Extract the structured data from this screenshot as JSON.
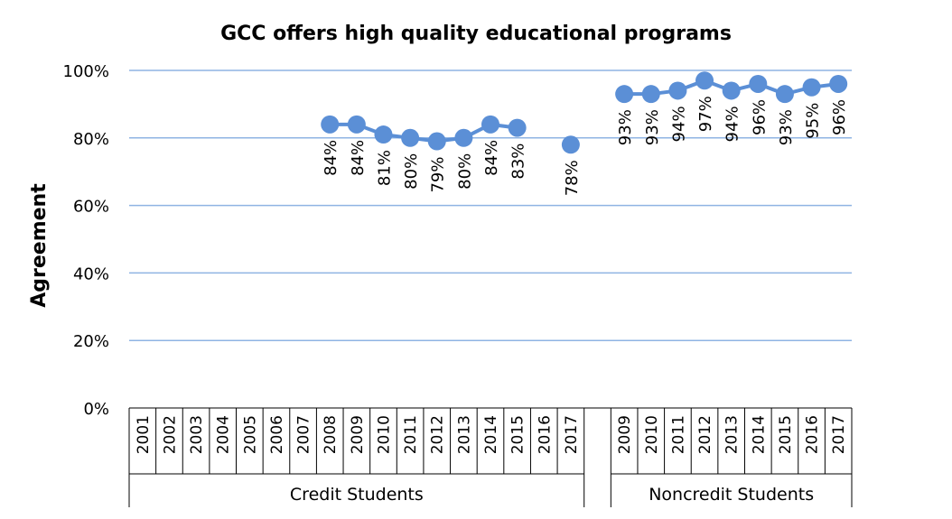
{
  "chart_data": {
    "type": "line",
    "title": "GCC offers high quality educational programs",
    "ylabel": "Agreement",
    "xlabel": "",
    "ylim": [
      0,
      100
    ],
    "yticks": [
      "0%",
      "20%",
      "40%",
      "60%",
      "80%",
      "100%"
    ],
    "grid": true,
    "groups": [
      {
        "label": "Credit Students",
        "categories": [
          "2001",
          "2002",
          "2003",
          "2004",
          "2005",
          "2006",
          "2007",
          "2008",
          "2009",
          "2010",
          "2011",
          "2012",
          "2013",
          "2014",
          "2015",
          "2016",
          "2017"
        ],
        "values": [
          null,
          null,
          null,
          null,
          null,
          null,
          null,
          84,
          84,
          81,
          80,
          79,
          80,
          84,
          83,
          null,
          78
        ],
        "labels": [
          "",
          "",
          "",
          "",
          "",
          "",
          "",
          "84%",
          "84%",
          "81%",
          "80%",
          "79%",
          "80%",
          "84%",
          "83%",
          "",
          "78%"
        ]
      },
      {
        "label": "Noncredit Students",
        "categories": [
          "2009",
          "2010",
          "2011",
          "2012",
          "2013",
          "2014",
          "2015",
          "2016",
          "2017"
        ],
        "values": [
          93,
          93,
          94,
          97,
          94,
          96,
          93,
          95,
          96
        ],
        "labels": [
          "93%",
          "93%",
          "94%",
          "97%",
          "94%",
          "96%",
          "93%",
          "95%",
          "96%"
        ]
      }
    ],
    "colors": {
      "series": "#5b8fd6",
      "grid": "#8fb4e3"
    }
  }
}
